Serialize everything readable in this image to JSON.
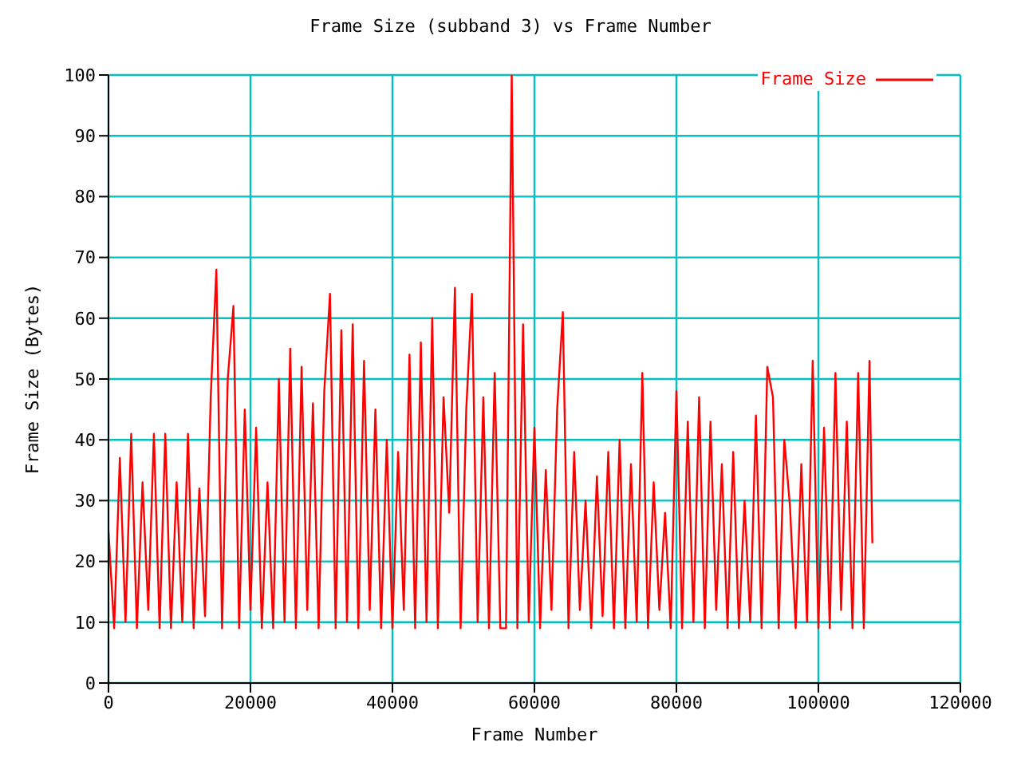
{
  "chart_data": {
    "type": "line",
    "title": "Frame Size (subband 3) vs Frame Number",
    "xlabel": "Frame Number",
    "ylabel": "Frame Size (Bytes)",
    "xlim": [
      0,
      120000
    ],
    "xticks": [
      0,
      20000,
      40000,
      60000,
      80000,
      100000,
      120000
    ],
    "ylim": [
      0,
      100
    ],
    "yticks": [
      0,
      10,
      20,
      30,
      40,
      50,
      60,
      70,
      80,
      90,
      100
    ],
    "grid": true,
    "legend": "top right",
    "marker": "none",
    "line_style": "solid",
    "series": [
      {
        "name": "Frame Size",
        "color": "#ff0000",
        "x": [
          0,
          800,
          1600,
          2400,
          3200,
          4000,
          4800,
          5600,
          6400,
          7200,
          8000,
          8800,
          9600,
          10400,
          11200,
          12000,
          12800,
          13600,
          14400,
          15200,
          16000,
          16800,
          17600,
          18400,
          19200,
          20000,
          20800,
          21600,
          22400,
          23200,
          24000,
          24800,
          25600,
          26400,
          27200,
          28000,
          28800,
          29600,
          30400,
          31200,
          32000,
          32800,
          33600,
          34400,
          35200,
          36000,
          36800,
          37600,
          38400,
          39200,
          40000,
          40800,
          41600,
          42400,
          43200,
          44000,
          44800,
          45600,
          46400,
          47200,
          48000,
          48800,
          49600,
          50400,
          51200,
          52000,
          52800,
          53600,
          54400,
          55200,
          56000,
          56800,
          57600,
          58400,
          59200,
          60000,
          60800,
          61600,
          62400,
          63200,
          64000,
          64800,
          65600,
          66400,
          67200,
          68000,
          68800,
          69600,
          70400,
          71200,
          72000,
          72800,
          73600,
          74400,
          75200,
          76000,
          76800,
          77600,
          78400,
          79200,
          80000,
          80800,
          81600,
          82400,
          83200,
          84000,
          84800,
          85600,
          86400,
          87200,
          88000,
          88800,
          89600,
          90400,
          91200,
          92000,
          92800,
          93600,
          94400,
          95200,
          96000,
          96800,
          97600,
          98400,
          99200,
          100000,
          100800,
          101600,
          102400,
          103200,
          104000,
          104800,
          105600,
          106400,
          107200,
          107600
        ],
        "values": [
          25,
          9,
          37,
          10,
          41,
          9,
          33,
          12,
          41,
          9,
          41,
          9,
          33,
          10,
          41,
          9,
          32,
          11,
          47,
          68,
          9,
          50,
          62,
          9,
          45,
          12,
          42,
          9,
          33,
          9,
          50,
          10,
          55,
          9,
          52,
          12,
          46,
          9,
          48,
          64,
          9,
          58,
          10,
          59,
          9,
          53,
          12,
          45,
          9,
          40,
          9,
          38,
          12,
          54,
          9,
          56,
          10,
          60,
          9,
          47,
          28,
          65,
          9,
          45,
          64,
          10,
          47,
          9,
          51,
          9,
          9,
          100,
          9,
          59,
          10,
          42,
          9,
          35,
          12,
          45,
          61,
          9,
          38,
          12,
          30,
          9,
          34,
          11,
          38,
          9,
          40,
          9,
          36,
          10,
          51,
          9,
          33,
          12,
          28,
          9,
          48,
          9,
          43,
          10,
          47,
          9,
          43,
          12,
          36,
          9,
          38,
          9,
          30,
          10,
          44,
          9,
          52,
          47,
          9,
          40,
          29,
          9,
          36,
          10,
          53,
          9,
          42,
          9,
          51,
          12,
          43,
          9,
          51,
          9,
          53,
          23
        ]
      }
    ]
  }
}
